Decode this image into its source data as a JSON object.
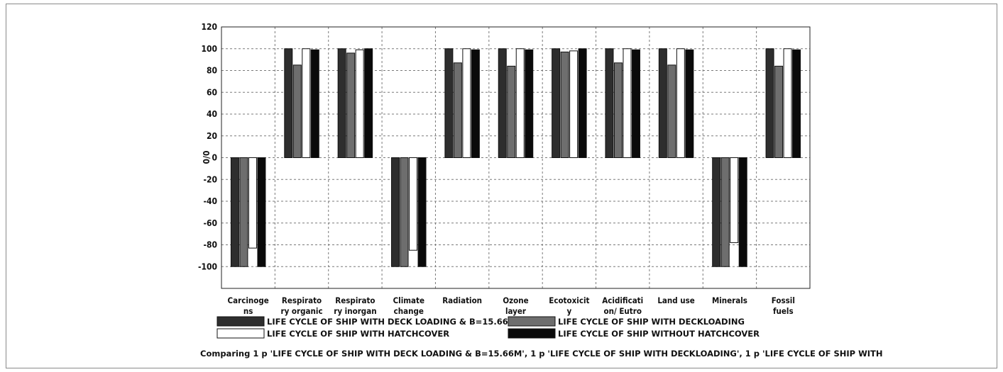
{
  "chart_data": {
    "type": "bar",
    "ylabel": "0/0",
    "ylim": [
      -120,
      120
    ],
    "yticks": [
      120,
      100,
      80,
      60,
      40,
      20,
      0,
      -20,
      -40,
      -60,
      -80,
      -100
    ],
    "grid": true,
    "categories": [
      [
        "Carcinoge",
        "ns"
      ],
      [
        "Respirato",
        "ry organic"
      ],
      [
        "Respirato",
        "ry inorgan"
      ],
      [
        "Climate",
        "change"
      ],
      [
        "Radiation"
      ],
      [
        "Ozone",
        "layer"
      ],
      [
        "Ecotoxicit",
        "y"
      ],
      [
        "Acidificati",
        "on/ Eutro"
      ],
      [
        "Land use"
      ],
      [
        "Minerals"
      ],
      [
        "Fossil",
        "fuels"
      ]
    ],
    "series": [
      {
        "name": "LIFE CYCLE OF SHIP WITH DECK LOADING & B=15.66M",
        "color": "#2e2e2e",
        "values": [
          -100,
          100,
          100,
          -100,
          100,
          100,
          100,
          100,
          100,
          -100,
          100
        ]
      },
      {
        "name": "LIFE CYCLE OF SHIP WITH DECKLOADING",
        "color": "#6e6e6e",
        "values": [
          -100,
          85,
          96,
          -100,
          87,
          84,
          97,
          87,
          85,
          -100,
          84
        ]
      },
      {
        "name": "LIFE CYCLE OF SHIP WITH HATCHCOVER",
        "color": "#ffffff",
        "values": [
          -83,
          100,
          99,
          -85,
          100,
          100,
          98,
          100,
          100,
          -78,
          100
        ]
      },
      {
        "name": "LIFE CYCLE OF SHIP WITHOUT HATCHCOVER",
        "color": "#0a0a0a",
        "values": [
          -100,
          99,
          100,
          -100,
          99,
          99,
          100,
          99,
          99,
          -100,
          99
        ]
      }
    ],
    "legend": "bottom",
    "caption": "Comparing 1 p 'LIFE CYCLE OF SHIP WITH DECK LOADING & B=15.66M', 1 p 'LIFE CYCLE OF SHIP WITH DECKLOADING', 1 p 'LIFE CYCLE OF SHIP WITH"
  }
}
